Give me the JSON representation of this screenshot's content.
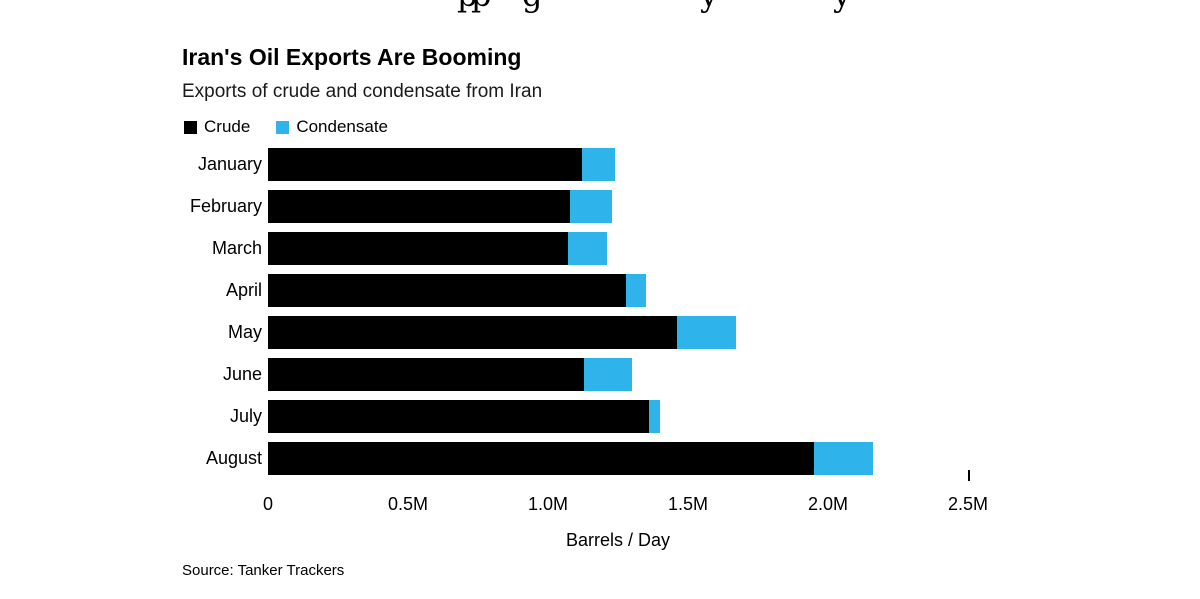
{
  "page": {
    "background": "#ffffff"
  },
  "cropped_headline": {
    "fragments": [
      "p",
      "p",
      "g",
      "y",
      "y"
    ]
  },
  "chart_data": {
    "type": "bar",
    "orientation": "horizontal",
    "stacked": true,
    "title": "Iran's Oil Exports Are Booming",
    "subtitle": "Exports of crude and condensate from Iran",
    "categories": [
      "January",
      "February",
      "March",
      "April",
      "May",
      "June",
      "July",
      "August"
    ],
    "series": [
      {
        "name": "Crude",
        "color": "#000000",
        "values": [
          1.12,
          1.08,
          1.07,
          1.28,
          1.46,
          1.13,
          1.36,
          1.95
        ]
      },
      {
        "name": "Condensate",
        "color": "#2eb4ea",
        "values": [
          0.12,
          0.15,
          0.14,
          0.07,
          0.21,
          0.17,
          0.04,
          0.21
        ]
      }
    ],
    "xlabel": "Barrels / Day",
    "xlim": [
      0,
      2.5
    ],
    "x_ticks": [
      {
        "value": 0,
        "label": "0"
      },
      {
        "value": 0.5,
        "label": "0.5M"
      },
      {
        "value": 1.0,
        "label": "1.0M"
      },
      {
        "value": 1.5,
        "label": "1.5M"
      },
      {
        "value": 2.0,
        "label": "2.0M"
      },
      {
        "value": 2.5,
        "label": "2.5M"
      }
    ],
    "unit": "million barrels per day",
    "legend_position": "top-left",
    "grid": false,
    "source": "Source: Tanker Trackers"
  }
}
